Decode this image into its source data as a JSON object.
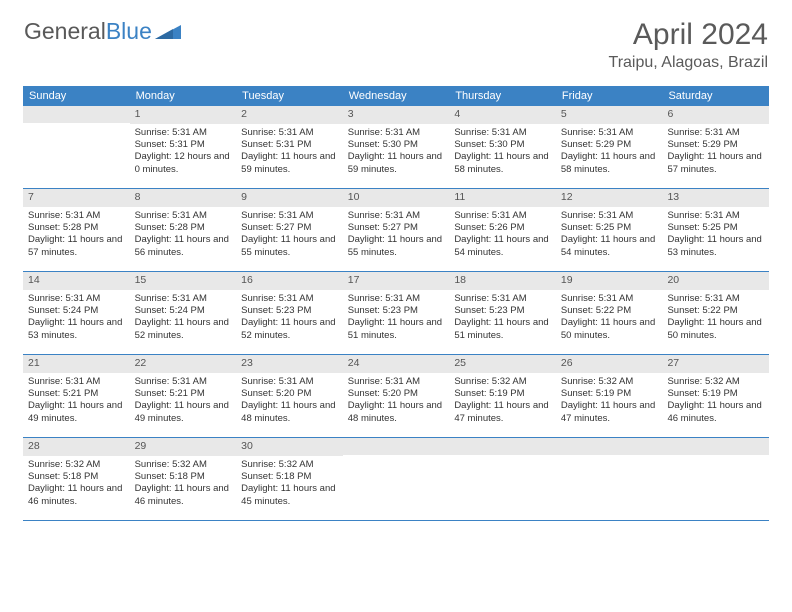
{
  "logo": {
    "text1": "General",
    "text2": "Blue"
  },
  "title": "April 2024",
  "location": "Traipu, Alagoas, Brazil",
  "daynames": [
    "Sunday",
    "Monday",
    "Tuesday",
    "Wednesday",
    "Thursday",
    "Friday",
    "Saturday"
  ],
  "colors": {
    "brand_blue": "#3b82c4",
    "header_gray": "#e8e8e8",
    "text": "#333333",
    "title_gray": "#5a5a5a"
  },
  "weeks": [
    [
      {
        "n": "",
        "sr": "",
        "ss": "",
        "dl": ""
      },
      {
        "n": "1",
        "sr": "Sunrise: 5:31 AM",
        "ss": "Sunset: 5:31 PM",
        "dl": "Daylight: 12 hours and 0 minutes."
      },
      {
        "n": "2",
        "sr": "Sunrise: 5:31 AM",
        "ss": "Sunset: 5:31 PM",
        "dl": "Daylight: 11 hours and 59 minutes."
      },
      {
        "n": "3",
        "sr": "Sunrise: 5:31 AM",
        "ss": "Sunset: 5:30 PM",
        "dl": "Daylight: 11 hours and 59 minutes."
      },
      {
        "n": "4",
        "sr": "Sunrise: 5:31 AM",
        "ss": "Sunset: 5:30 PM",
        "dl": "Daylight: 11 hours and 58 minutes."
      },
      {
        "n": "5",
        "sr": "Sunrise: 5:31 AM",
        "ss": "Sunset: 5:29 PM",
        "dl": "Daylight: 11 hours and 58 minutes."
      },
      {
        "n": "6",
        "sr": "Sunrise: 5:31 AM",
        "ss": "Sunset: 5:29 PM",
        "dl": "Daylight: 11 hours and 57 minutes."
      }
    ],
    [
      {
        "n": "7",
        "sr": "Sunrise: 5:31 AM",
        "ss": "Sunset: 5:28 PM",
        "dl": "Daylight: 11 hours and 57 minutes."
      },
      {
        "n": "8",
        "sr": "Sunrise: 5:31 AM",
        "ss": "Sunset: 5:28 PM",
        "dl": "Daylight: 11 hours and 56 minutes."
      },
      {
        "n": "9",
        "sr": "Sunrise: 5:31 AM",
        "ss": "Sunset: 5:27 PM",
        "dl": "Daylight: 11 hours and 55 minutes."
      },
      {
        "n": "10",
        "sr": "Sunrise: 5:31 AM",
        "ss": "Sunset: 5:27 PM",
        "dl": "Daylight: 11 hours and 55 minutes."
      },
      {
        "n": "11",
        "sr": "Sunrise: 5:31 AM",
        "ss": "Sunset: 5:26 PM",
        "dl": "Daylight: 11 hours and 54 minutes."
      },
      {
        "n": "12",
        "sr": "Sunrise: 5:31 AM",
        "ss": "Sunset: 5:25 PM",
        "dl": "Daylight: 11 hours and 54 minutes."
      },
      {
        "n": "13",
        "sr": "Sunrise: 5:31 AM",
        "ss": "Sunset: 5:25 PM",
        "dl": "Daylight: 11 hours and 53 minutes."
      }
    ],
    [
      {
        "n": "14",
        "sr": "Sunrise: 5:31 AM",
        "ss": "Sunset: 5:24 PM",
        "dl": "Daylight: 11 hours and 53 minutes."
      },
      {
        "n": "15",
        "sr": "Sunrise: 5:31 AM",
        "ss": "Sunset: 5:24 PM",
        "dl": "Daylight: 11 hours and 52 minutes."
      },
      {
        "n": "16",
        "sr": "Sunrise: 5:31 AM",
        "ss": "Sunset: 5:23 PM",
        "dl": "Daylight: 11 hours and 52 minutes."
      },
      {
        "n": "17",
        "sr": "Sunrise: 5:31 AM",
        "ss": "Sunset: 5:23 PM",
        "dl": "Daylight: 11 hours and 51 minutes."
      },
      {
        "n": "18",
        "sr": "Sunrise: 5:31 AM",
        "ss": "Sunset: 5:23 PM",
        "dl": "Daylight: 11 hours and 51 minutes."
      },
      {
        "n": "19",
        "sr": "Sunrise: 5:31 AM",
        "ss": "Sunset: 5:22 PM",
        "dl": "Daylight: 11 hours and 50 minutes."
      },
      {
        "n": "20",
        "sr": "Sunrise: 5:31 AM",
        "ss": "Sunset: 5:22 PM",
        "dl": "Daylight: 11 hours and 50 minutes."
      }
    ],
    [
      {
        "n": "21",
        "sr": "Sunrise: 5:31 AM",
        "ss": "Sunset: 5:21 PM",
        "dl": "Daylight: 11 hours and 49 minutes."
      },
      {
        "n": "22",
        "sr": "Sunrise: 5:31 AM",
        "ss": "Sunset: 5:21 PM",
        "dl": "Daylight: 11 hours and 49 minutes."
      },
      {
        "n": "23",
        "sr": "Sunrise: 5:31 AM",
        "ss": "Sunset: 5:20 PM",
        "dl": "Daylight: 11 hours and 48 minutes."
      },
      {
        "n": "24",
        "sr": "Sunrise: 5:31 AM",
        "ss": "Sunset: 5:20 PM",
        "dl": "Daylight: 11 hours and 48 minutes."
      },
      {
        "n": "25",
        "sr": "Sunrise: 5:32 AM",
        "ss": "Sunset: 5:19 PM",
        "dl": "Daylight: 11 hours and 47 minutes."
      },
      {
        "n": "26",
        "sr": "Sunrise: 5:32 AM",
        "ss": "Sunset: 5:19 PM",
        "dl": "Daylight: 11 hours and 47 minutes."
      },
      {
        "n": "27",
        "sr": "Sunrise: 5:32 AM",
        "ss": "Sunset: 5:19 PM",
        "dl": "Daylight: 11 hours and 46 minutes."
      }
    ],
    [
      {
        "n": "28",
        "sr": "Sunrise: 5:32 AM",
        "ss": "Sunset: 5:18 PM",
        "dl": "Daylight: 11 hours and 46 minutes."
      },
      {
        "n": "29",
        "sr": "Sunrise: 5:32 AM",
        "ss": "Sunset: 5:18 PM",
        "dl": "Daylight: 11 hours and 46 minutes."
      },
      {
        "n": "30",
        "sr": "Sunrise: 5:32 AM",
        "ss": "Sunset: 5:18 PM",
        "dl": "Daylight: 11 hours and 45 minutes."
      },
      {
        "n": "",
        "sr": "",
        "ss": "",
        "dl": ""
      },
      {
        "n": "",
        "sr": "",
        "ss": "",
        "dl": ""
      },
      {
        "n": "",
        "sr": "",
        "ss": "",
        "dl": ""
      },
      {
        "n": "",
        "sr": "",
        "ss": "",
        "dl": ""
      }
    ]
  ]
}
